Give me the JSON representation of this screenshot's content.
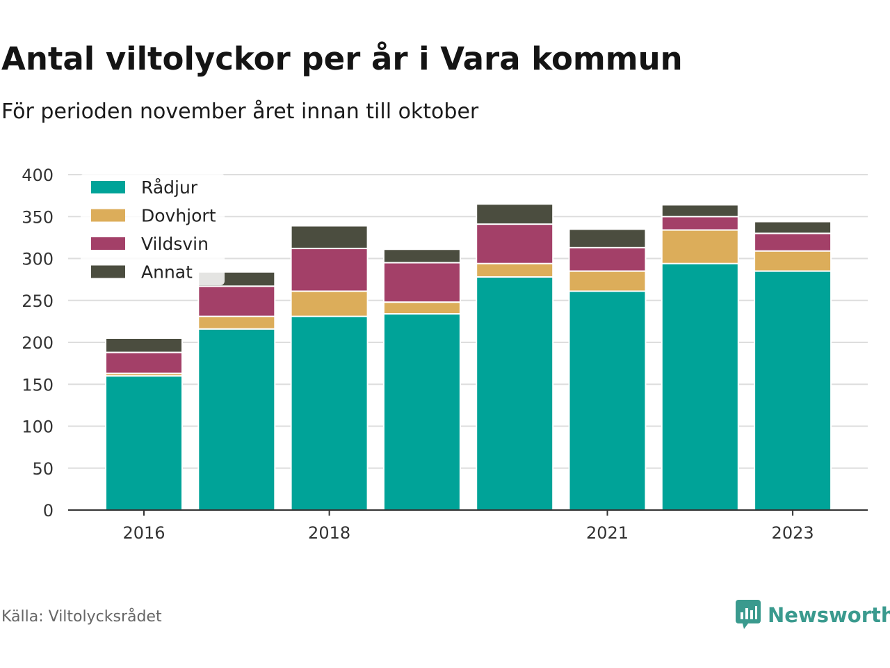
{
  "title": "Antal viltolyckor per år i Vara kommun",
  "subtitle": "För perioden november året innan till oktober",
  "source": "Källa: Viltolycksrådet",
  "brand": "Newsworthy",
  "colors": {
    "Rådjur": "#00a398",
    "Dovhjort": "#dcad5a",
    "Vildsvin": "#a34068",
    "Annat": "#4b4d3f",
    "grid": "#dddddd",
    "brand": "#3a9a8e"
  },
  "chart_data": {
    "type": "bar",
    "stacked": true,
    "categories": [
      "2016",
      "2017",
      "2018",
      "2019",
      "2020",
      "2021",
      "2022",
      "2023"
    ],
    "x_tick_labels": [
      "2016",
      "",
      "2018",
      "",
      "",
      "2021",
      "",
      "2023"
    ],
    "series": [
      {
        "name": "Rådjur",
        "values": [
          160,
          216,
          231,
          234,
          278,
          261,
          294,
          285
        ]
      },
      {
        "name": "Dovhjort",
        "values": [
          3,
          15,
          30,
          14,
          16,
          24,
          40,
          24
        ]
      },
      {
        "name": "Vildsvin",
        "values": [
          25,
          36,
          51,
          47,
          47,
          28,
          16,
          21
        ]
      },
      {
        "name": "Annat",
        "values": [
          17,
          17,
          27,
          16,
          24,
          22,
          14,
          14
        ]
      }
    ],
    "ylim": [
      0,
      400
    ],
    "yticks": [
      "0",
      "50",
      "100",
      "150",
      "200",
      "250",
      "300",
      "350",
      "400"
    ],
    "grid": true,
    "legend": "top-left"
  }
}
